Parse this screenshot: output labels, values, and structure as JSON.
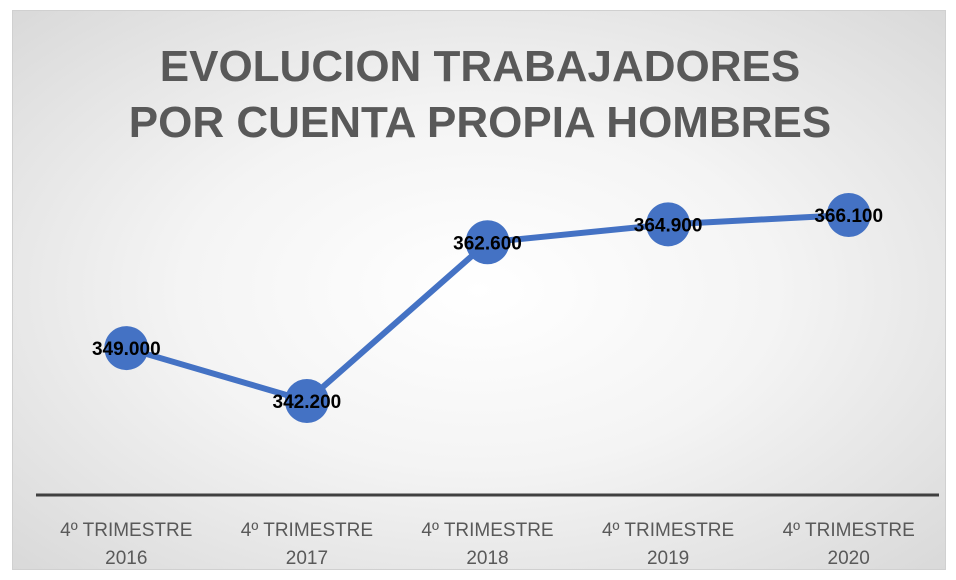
{
  "chart_data": {
    "type": "line",
    "title": "EVOLUCION TRABAJADORES POR CUENTA PROPIA HOMBRES",
    "categories": [
      "4º TRIMESTRE 2016",
      "4º TRIMESTRE 2017",
      "4º TRIMESTRE 2018",
      "4º TRIMESTRE 2019",
      "4º TRIMESTRE 2020"
    ],
    "series": [
      {
        "name": "Trabajadores por cuenta propia hombres",
        "color": "#4472c4",
        "values": [
          349000,
          342200,
          362600,
          364900,
          366100
        ],
        "value_labels": [
          "349.000",
          "342.200",
          "362.600",
          "364.900",
          "366.100"
        ]
      }
    ]
  }
}
